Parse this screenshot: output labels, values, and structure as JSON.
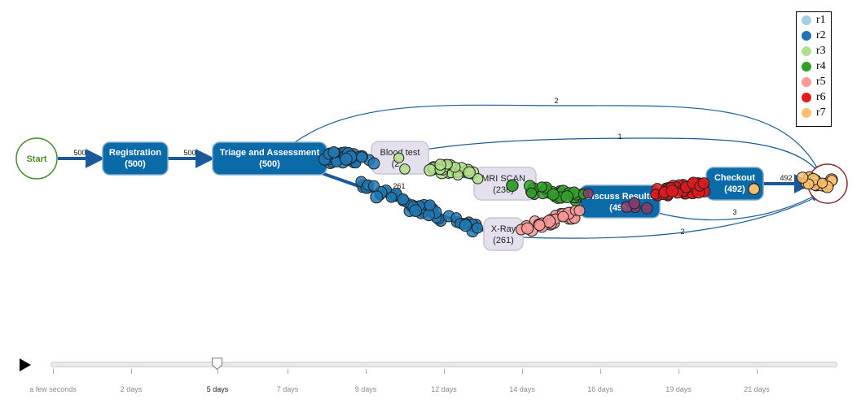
{
  "nodes": {
    "start": "Start",
    "registration": {
      "label": "Registration",
      "count": "(500)"
    },
    "triage": {
      "label": "Triage and Assessment",
      "count": "(500)"
    },
    "blood_test": {
      "label": "Blood test",
      "count": "(2…"
    },
    "mri": {
      "label": "MRI SCAN",
      "count": "(236)"
    },
    "xray": {
      "label": "X-Ray",
      "count": "(261)"
    },
    "discuss": {
      "label": "Discuss Results",
      "count": "(495)"
    },
    "checkout": {
      "label": "Checkout",
      "count": "(492)"
    }
  },
  "edges": {
    "start_registration": "500",
    "registration_triage": "500",
    "triage_end": "2",
    "blood_end": "1",
    "triage_xray": "261",
    "checkout_end": "492",
    "discuss_end": "3",
    "xray_end": "2"
  },
  "legend": [
    {
      "label": "r1",
      "color": "#a6cee3"
    },
    {
      "label": "r2",
      "color": "#1f78b4"
    },
    {
      "label": "r3",
      "color": "#b2df8a"
    },
    {
      "label": "r4",
      "color": "#33a02c"
    },
    {
      "label": "r5",
      "color": "#fb9a99"
    },
    {
      "label": "r6",
      "color": "#e31a1c"
    },
    {
      "label": "r7",
      "color": "#fdbf6f"
    }
  ],
  "timeline": {
    "ticks": [
      "a few seconds",
      "2 days",
      "5 days",
      "7 days",
      "9 days",
      "12 days",
      "14 days",
      "16 days",
      "19 days",
      "21 days"
    ],
    "current": "5 days"
  },
  "colors": {
    "activity_dark": "#0b6aa8",
    "activity_light": "#e4e0ee",
    "edge": "#1a5a9a",
    "start_stroke": "#4a8b2c",
    "end_stroke": "#8b2b2b"
  }
}
